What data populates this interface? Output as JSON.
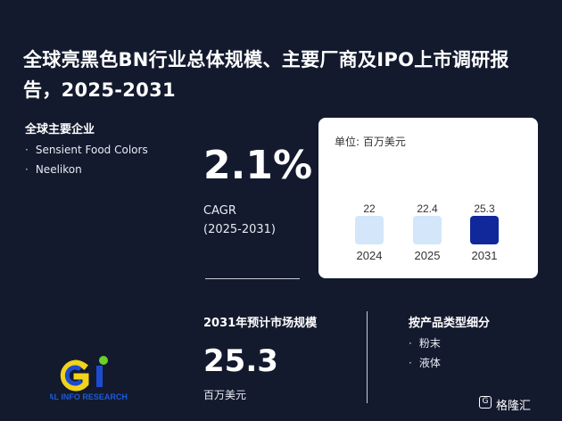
{
  "title": "全球亮黑色BN行业总体规模、主要厂商及IPO上市调研报告，2025-2031",
  "companies": {
    "heading": "全球主要企业",
    "items": [
      "Sensient Food Colors",
      "Neelikon"
    ]
  },
  "cagr": {
    "value": "2.1%",
    "label_line1": "CAGR",
    "label_line2": "(2025-2031)"
  },
  "chart_data": {
    "type": "bar",
    "unit": "单位: 百万美元",
    "categories": [
      "2024",
      "2025",
      "2031"
    ],
    "values": [
      22,
      22.4,
      25.3
    ],
    "value_labels": [
      "22",
      "22.4",
      "25.3"
    ],
    "colors": [
      "#d3e6fa",
      "#d3e6fa",
      "#10289a"
    ]
  },
  "market": {
    "heading": "2031年预计市场规模",
    "value": "25.3",
    "unit": "百万美元"
  },
  "product_types": {
    "heading": "按产品类型细分",
    "items": [
      "粉末",
      "液体"
    ]
  },
  "logo": {
    "text": "GLOBAL INFO RESEARCH",
    "colors": [
      "#f2d21b",
      "#1d4bd0",
      "#6ccf2a"
    ]
  },
  "brand": {
    "icon": "gelonghui-g-icon",
    "label": "格隆汇"
  }
}
